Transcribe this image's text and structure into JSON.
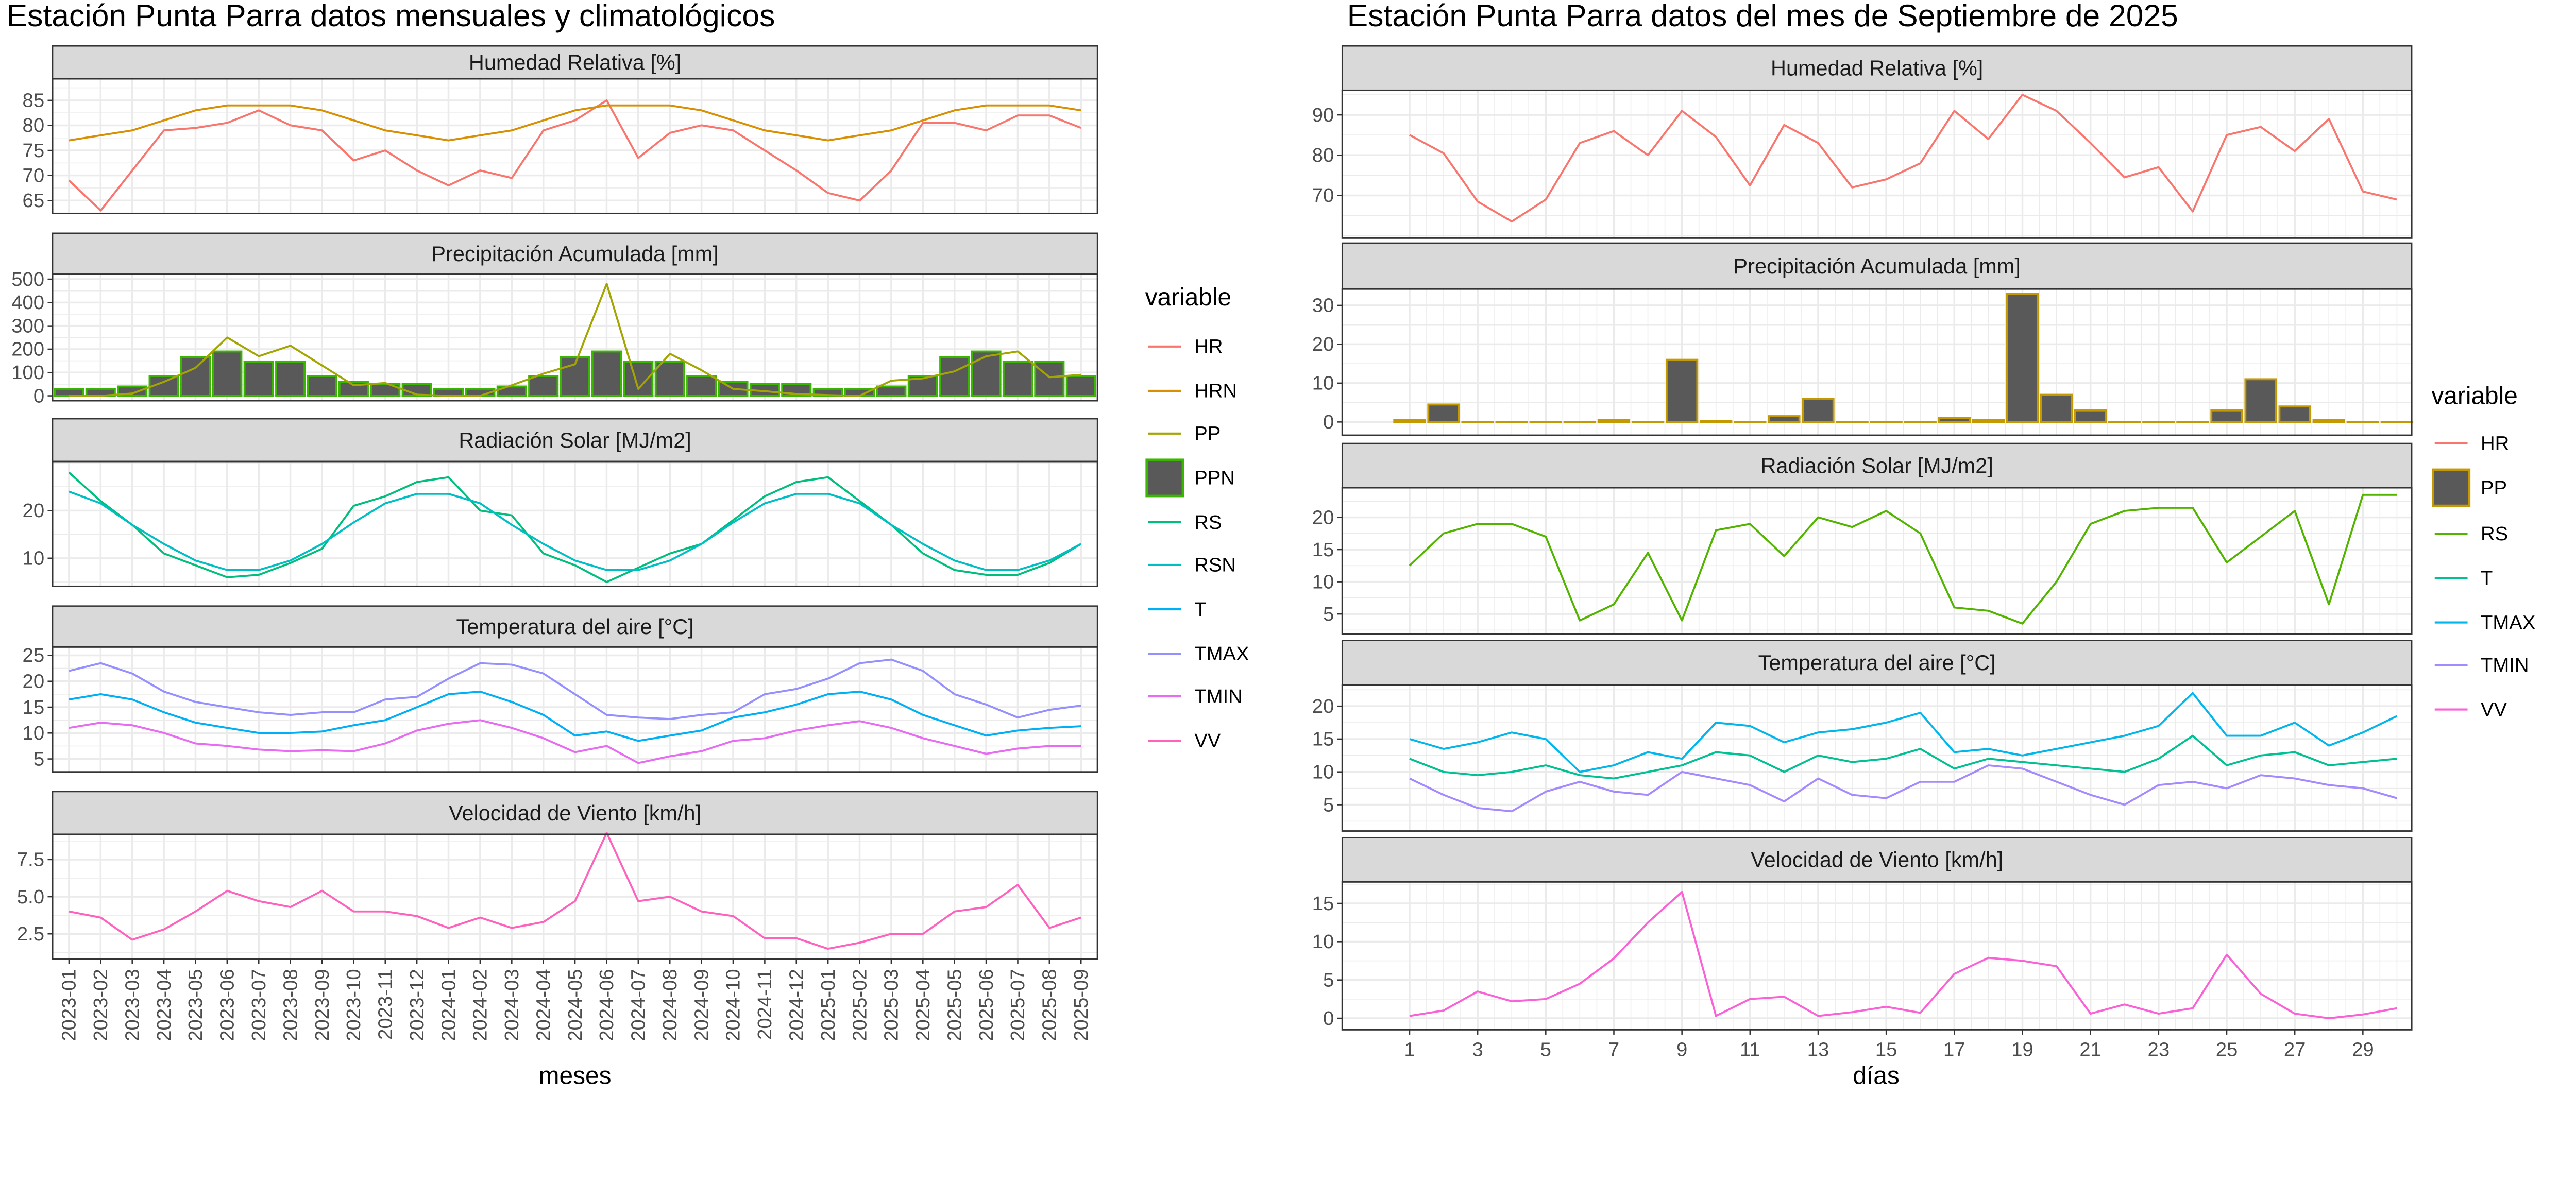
{
  "chart_data": [
    {
      "type": "line",
      "title": "Estación Punta Parra datos mensuales y climatológicos",
      "xlabel": "meses",
      "x": [
        "2023-01",
        "2023-02",
        "2023-03",
        "2023-04",
        "2023-05",
        "2023-06",
        "2023-07",
        "2023-08",
        "2023-09",
        "2023-10",
        "2023-11",
        "2023-12",
        "2024-01",
        "2024-02",
        "2024-03",
        "2024-04",
        "2024-05",
        "2024-06",
        "2024-07",
        "2024-08",
        "2024-09",
        "2024-10",
        "2024-11",
        "2024-12",
        "2025-01",
        "2025-02",
        "2025-03",
        "2025-04",
        "2025-05",
        "2025-06",
        "2025-07",
        "2025-08",
        "2025-09"
      ],
      "legend": {
        "title": "variable",
        "placement": "right",
        "entries": [
          "HR",
          "HRN",
          "PP",
          "PPN",
          "RS",
          "RSN",
          "T",
          "TMAX",
          "TMIN",
          "VV"
        ]
      },
      "colors": {
        "HR": "#F8766D",
        "HRN": "#D89000",
        "PP": "#A3A500",
        "PPN": "#39B600",
        "RS": "#00BF7D",
        "RSN": "#00BFC4",
        "T": "#00B0F6",
        "TMAX": "#9590FF",
        "TMIN": "#E76BF3",
        "VV": "#FF62BC",
        "bar_fill": "#595959"
      },
      "grid": true,
      "panels": [
        {
          "strip": "Humedad Relativa [%]",
          "ylim": [
            62.4,
            89.3
          ],
          "yticks": [
            65,
            70,
            75,
            80,
            85
          ],
          "ytick_labels": [
            "65",
            "70",
            "75",
            "80",
            "85"
          ],
          "series": [
            {
              "name": "HR",
              "geom": "line",
              "values": [
                69,
                63,
                71,
                79,
                79.5,
                80.5,
                83,
                80,
                79,
                73,
                75,
                71,
                68,
                71,
                69.5,
                79,
                81,
                85,
                73.5,
                78.5,
                80,
                79,
                75,
                71,
                66.5,
                65,
                71,
                80.5,
                80.5,
                79,
                82,
                82,
                79.5
              ]
            },
            {
              "name": "HRN",
              "geom": "line",
              "values": [
                77,
                78,
                79,
                81,
                83,
                84,
                84,
                84,
                83,
                81,
                79,
                78,
                77,
                78,
                79,
                81,
                83,
                84,
                84,
                84,
                83,
                81,
                79,
                78,
                77,
                78,
                79,
                81,
                83,
                84,
                84,
                84,
                83
              ]
            }
          ]
        },
        {
          "strip": "Precipitación Acumulada [mm]",
          "ylim": [
            -21,
            521
          ],
          "yticks": [
            0,
            100,
            200,
            300,
            400,
            500
          ],
          "ytick_labels": [
            "0",
            "100",
            "200",
            "300",
            "400",
            "500"
          ],
          "series": [
            {
              "name": "PPN",
              "geom": "bar",
              "values": [
                30,
                30,
                40,
                85,
                165,
                190,
                145,
                145,
                85,
                60,
                50,
                50,
                30,
                30,
                40,
                85,
                165,
                190,
                145,
                145,
                85,
                60,
                50,
                50,
                30,
                30,
                40,
                85,
                165,
                190,
                145,
                145,
                85
              ]
            },
            {
              "name": "PP",
              "geom": "line",
              "values": [
                0,
                0,
                10,
                60,
                120,
                250,
                170,
                215,
                130,
                45,
                55,
                5,
                0,
                0,
                45,
                95,
                135,
                480,
                30,
                180,
                110,
                30,
                20,
                8,
                3,
                0,
                65,
                75,
                105,
                170,
                190,
                80,
                90
              ]
            }
          ]
        },
        {
          "strip": "Radiación Solar [MJ/m2]",
          "ylim": [
            4.1,
            30.3
          ],
          "yticks": [
            10,
            20
          ],
          "ytick_labels": [
            "10",
            "20"
          ],
          "series": [
            {
              "name": "RS",
              "geom": "line",
              "values": [
                28,
                22,
                17,
                11,
                8.5,
                6,
                6.5,
                9,
                12,
                21,
                23,
                26,
                27,
                20,
                19,
                11,
                8.5,
                5,
                8,
                11,
                13,
                18,
                23,
                26,
                27,
                22,
                17,
                11,
                7.5,
                6.5,
                6.5,
                9,
                13
              ]
            },
            {
              "name": "RSN",
              "geom": "line",
              "values": [
                24,
                21.5,
                17,
                13,
                9.5,
                7.5,
                7.5,
                9.5,
                13,
                17.5,
                21.5,
                23.5,
                23.5,
                21.5,
                17,
                13,
                9.5,
                7.5,
                7.5,
                9.5,
                13,
                17.5,
                21.5,
                23.5,
                23.5,
                21.5,
                17,
                13,
                9.5,
                7.5,
                7.5,
                9.5,
                13
              ]
            }
          ]
        },
        {
          "strip": "Temperatura del aire [°C]",
          "ylim": [
            2.5,
            26.6
          ],
          "yticks": [
            5,
            10,
            15,
            20,
            25
          ],
          "ytick_labels": [
            "5",
            "10",
            "15",
            "20",
            "25"
          ],
          "series": [
            {
              "name": "TMAX",
              "geom": "line",
              "values": [
                22,
                23.5,
                21.5,
                18,
                16,
                15,
                14,
                13.5,
                14,
                14,
                16.5,
                17,
                20.5,
                23.5,
                23.2,
                21.5,
                17.5,
                13.5,
                13,
                12.7,
                13.5,
                14,
                17.5,
                18.5,
                20.5,
                23.5,
                24.2,
                22,
                17.5,
                15.5,
                13,
                14.5,
                15.3
              ]
            },
            {
              "name": "T",
              "geom": "line",
              "values": [
                16.5,
                17.5,
                16.5,
                14,
                12,
                11,
                10,
                10,
                10.3,
                11.5,
                12.5,
                15,
                17.5,
                18,
                16,
                13.5,
                9.5,
                10.3,
                8.5,
                9.5,
                10.5,
                13,
                14,
                15.5,
                17.5,
                18,
                16.5,
                13.5,
                11.5,
                9.5,
                10.5,
                11,
                11.3
              ]
            },
            {
              "name": "TMIN",
              "geom": "line",
              "values": [
                11,
                12,
                11.5,
                10,
                8,
                7.5,
                6.8,
                6.5,
                6.7,
                6.5,
                8,
                10.5,
                11.8,
                12.5,
                11,
                9,
                6.3,
                7.5,
                4.2,
                5.5,
                6.5,
                8.5,
                9,
                10.5,
                11.5,
                12.3,
                11,
                9,
                7.5,
                6,
                7,
                7.5,
                7.5
              ]
            }
          ]
        },
        {
          "strip": "Velocidad de Viento [km/h]",
          "ylim": [
            0.8,
            9.2
          ],
          "yticks": [
            2.5,
            5,
            7.5
          ],
          "ytick_labels": [
            "2.5",
            "5.0",
            "7.5"
          ],
          "series": [
            {
              "name": "VV",
              "geom": "line",
              "values": [
                4,
                3.6,
                2.1,
                2.8,
                4,
                5.4,
                4.7,
                4.3,
                5.4,
                4,
                4,
                3.7,
                2.9,
                3.6,
                2.9,
                3.3,
                4.7,
                9.3,
                4.7,
                5,
                4,
                3.7,
                2.2,
                2.2,
                1.5,
                1.9,
                2.5,
                2.5,
                4,
                4.3,
                5.8,
                2.9,
                3.6
              ]
            }
          ]
        }
      ]
    },
    {
      "type": "line",
      "title": "Estación Punta Parra datos del mes de Septiembre de 2025",
      "xlabel": "días",
      "x": [
        1,
        2,
        3,
        4,
        5,
        6,
        7,
        8,
        9,
        10,
        11,
        12,
        13,
        14,
        15,
        16,
        17,
        18,
        19,
        20,
        21,
        22,
        23,
        24,
        25,
        26,
        27,
        28,
        29,
        30
      ],
      "xticks": [
        1,
        3,
        5,
        7,
        9,
        11,
        13,
        15,
        17,
        19,
        21,
        23,
        25,
        27,
        29
      ],
      "xtick_labels": [
        "1",
        "3",
        "5",
        "7",
        "9",
        "11",
        "13",
        "15",
        "17",
        "19",
        "21",
        "23",
        "25",
        "27",
        "29"
      ],
      "legend": {
        "title": "variable",
        "placement": "right",
        "entries": [
          "HR",
          "PP",
          "RS",
          "T",
          "TMAX",
          "TMIN",
          "VV"
        ]
      },
      "colors": {
        "HR": "#F8766D",
        "PP": "#C49A00",
        "RS": "#53B400",
        "T": "#00C094",
        "TMAX": "#00B6EB",
        "TMIN": "#A58AFF",
        "VV": "#FB61D7",
        "bar_fill": "#595959"
      },
      "grid": true,
      "panels": [
        {
          "strip": "Humedad Relativa [%]",
          "ylim": [
            59.4,
            96.1
          ],
          "yticks": [
            70,
            80,
            90
          ],
          "ytick_labels": [
            "70",
            "80",
            "90"
          ],
          "series": [
            {
              "name": "HR",
              "geom": "line",
              "values": [
                85,
                80.5,
                68.5,
                63.5,
                69,
                83,
                86,
                80,
                91,
                84.5,
                72.5,
                87.5,
                83,
                72,
                74,
                78,
                91,
                84,
                95,
                91,
                83,
                74.5,
                77,
                66,
                85,
                87,
                81,
                89,
                71,
                69
              ]
            }
          ]
        },
        {
          "strip": "Precipitación Acumulada [mm]",
          "ylim": [
            -3.4,
            34.2
          ],
          "yticks": [
            0,
            10,
            20,
            30
          ],
          "ytick_labels": [
            "0",
            "10",
            "20",
            "30"
          ],
          "series": [
            {
              "name": "PP",
              "geom": "bar",
              "values": [
                0.5,
                4.5,
                0,
                0,
                0,
                0,
                0.5,
                0,
                16,
                0.2,
                0,
                1.5,
                6,
                0,
                0,
                0,
                1,
                0.5,
                33,
                7,
                3,
                0,
                0,
                0,
                3,
                11,
                4,
                0.5,
                0,
                0
              ]
            }
          ]
        },
        {
          "strip": "Radiación Solar [MJ/m2]",
          "ylim": [
            1.9,
            24.6
          ],
          "yticks": [
            5,
            10,
            15,
            20
          ],
          "ytick_labels": [
            "5",
            "10",
            "15",
            "20"
          ],
          "series": [
            {
              "name": "RS",
              "geom": "line",
              "values": [
                12.5,
                17.5,
                19,
                19,
                17,
                4,
                6.5,
                14.5,
                4,
                18,
                19,
                14,
                20,
                18.5,
                21,
                17.5,
                6,
                5.5,
                3.5,
                10,
                19,
                21,
                21.5,
                21.5,
                13,
                17,
                21,
                6.5,
                23.5,
                23.5
              ]
            }
          ]
        },
        {
          "strip": "Temperatura del aire [°C]",
          "ylim": [
            1,
            23.25
          ],
          "yticks": [
            5,
            10,
            15,
            20
          ],
          "ytick_labels": [
            "5",
            "10",
            "15",
            "20"
          ],
          "series": [
            {
              "name": "TMAX",
              "geom": "line",
              "values": [
                15,
                13.5,
                14.5,
                16,
                15,
                10,
                11,
                13,
                12,
                17.5,
                17,
                14.5,
                16,
                16.5,
                17.5,
                19,
                13,
                13.5,
                12.5,
                13.5,
                14.5,
                15.5,
                17,
                22,
                15.5,
                15.5,
                17.5,
                14,
                16,
                18.5
              ]
            },
            {
              "name": "T",
              "geom": "line",
              "values": [
                12,
                10,
                9.5,
                10,
                11,
                9.5,
                9,
                10,
                11,
                13,
                12.5,
                10,
                12.5,
                11.5,
                12,
                13.5,
                10.5,
                12,
                11.5,
                11,
                10.5,
                10,
                12,
                15.5,
                11,
                12.5,
                13,
                11,
                11.5,
                12
              ]
            },
            {
              "name": "TMIN",
              "geom": "line",
              "values": [
                9,
                6.5,
                4.5,
                4,
                7,
                8.5,
                7,
                6.5,
                10,
                9,
                8,
                5.5,
                9,
                6.5,
                6,
                8.5,
                8.5,
                11,
                10.5,
                8.5,
                6.5,
                5,
                8,
                8.5,
                7.5,
                9.5,
                9,
                8,
                7.5,
                6
              ]
            }
          ]
        },
        {
          "strip": "Velocidad de Viento [km/h]",
          "ylim": [
            -1.5,
            17.8
          ],
          "yticks": [
            0,
            5,
            10,
            15
          ],
          "ytick_labels": [
            "0",
            "5",
            "10",
            "15"
          ],
          "series": [
            {
              "name": "VV",
              "geom": "line",
              "values": [
                0.3,
                1,
                3.5,
                2.2,
                2.5,
                4.5,
                7.8,
                12.5,
                16.5,
                0.3,
                2.5,
                2.8,
                0.3,
                0.8,
                1.5,
                0.7,
                5.8,
                7.9,
                7.5,
                6.8,
                0.6,
                1.8,
                0.6,
                1.3,
                8.3,
                3.2,
                0.6,
                0,
                0.5,
                1.3
              ]
            }
          ]
        }
      ]
    }
  ]
}
